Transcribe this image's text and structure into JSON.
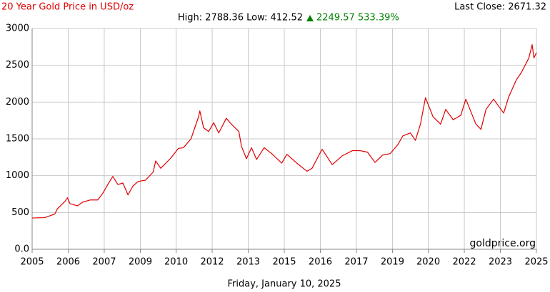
{
  "chart_data": {
    "type": "line",
    "title": "20 Year Gold Price in USD/oz",
    "subtitle": "High: 2788.36 Low: 412.52",
    "change": "2249.57 533.39%",
    "last_close": "Last Close: 2671.32",
    "watermark": "goldprice.org",
    "x_label": "Friday, January 10, 2025",
    "color": "#e00000",
    "grid": true,
    "xlim": [
      2005,
      2025
    ],
    "ylim": [
      0,
      3000
    ],
    "yticks": [
      {
        "value": 0,
        "label": "0.0"
      },
      500,
      1000,
      1500,
      2000,
      2500,
      3000
    ],
    "xticks": [
      2005,
      {
        "value": 2006.43,
        "label": "2006"
      },
      {
        "value": 2007.86,
        "label": "2007"
      },
      {
        "value": 2009.29,
        "label": "2009"
      },
      {
        "value": 2010.71,
        "label": "2010"
      },
      {
        "value": 2012.14,
        "label": "2012"
      },
      {
        "value": 2013.57,
        "label": "2013"
      },
      2015,
      {
        "value": 2016.43,
        "label": "2016"
      },
      {
        "value": 2017.86,
        "label": "2017"
      },
      {
        "value": 2019.29,
        "label": "2019"
      },
      {
        "value": 2020.71,
        "label": "2020"
      },
      {
        "value": 2022.14,
        "label": "2022"
      },
      {
        "value": 2023.57,
        "label": "2023"
      },
      2025
    ],
    "x": [
      2005.0,
      2005.5,
      2005.9,
      2006.0,
      2006.3,
      2006.4,
      2006.5,
      2006.8,
      2007.0,
      2007.3,
      2007.6,
      2007.8,
      2008.0,
      2008.2,
      2008.4,
      2008.6,
      2008.8,
      2009.0,
      2009.2,
      2009.5,
      2009.8,
      2009.9,
      2010.1,
      2010.5,
      2010.8,
      2011.0,
      2011.3,
      2011.6,
      2011.65,
      2011.8,
      2012.0,
      2012.2,
      2012.4,
      2012.7,
      2012.9,
      2013.2,
      2013.3,
      2013.5,
      2013.7,
      2013.9,
      2014.2,
      2014.5,
      2014.9,
      2015.1,
      2015.5,
      2015.9,
      2016.1,
      2016.5,
      2016.9,
      2017.3,
      2017.7,
      2018.0,
      2018.3,
      2018.6,
      2018.9,
      2019.2,
      2019.5,
      2019.7,
      2020.0,
      2020.2,
      2020.4,
      2020.6,
      2020.9,
      2021.2,
      2021.4,
      2021.7,
      2022.0,
      2022.2,
      2022.6,
      2022.8,
      2023.0,
      2023.3,
      2023.7,
      2023.9,
      2024.2,
      2024.4,
      2024.7,
      2024.83,
      2024.9,
      2025.0
    ],
    "values": [
      425,
      430,
      480,
      550,
      650,
      700,
      620,
      590,
      640,
      670,
      670,
      760,
      880,
      990,
      880,
      900,
      740,
      860,
      920,
      940,
      1050,
      1200,
      1100,
      1240,
      1370,
      1380,
      1500,
      1800,
      1880,
      1650,
      1600,
      1720,
      1580,
      1780,
      1700,
      1600,
      1400,
      1230,
      1380,
      1220,
      1380,
      1300,
      1170,
      1290,
      1170,
      1060,
      1100,
      1360,
      1150,
      1270,
      1340,
      1340,
      1320,
      1180,
      1280,
      1300,
      1420,
      1540,
      1580,
      1480,
      1700,
      2060,
      1800,
      1700,
      1900,
      1760,
      1820,
      2040,
      1700,
      1630,
      1900,
      2040,
      1850,
      2070,
      2300,
      2400,
      2600,
      2780,
      2600,
      2671
    ]
  }
}
